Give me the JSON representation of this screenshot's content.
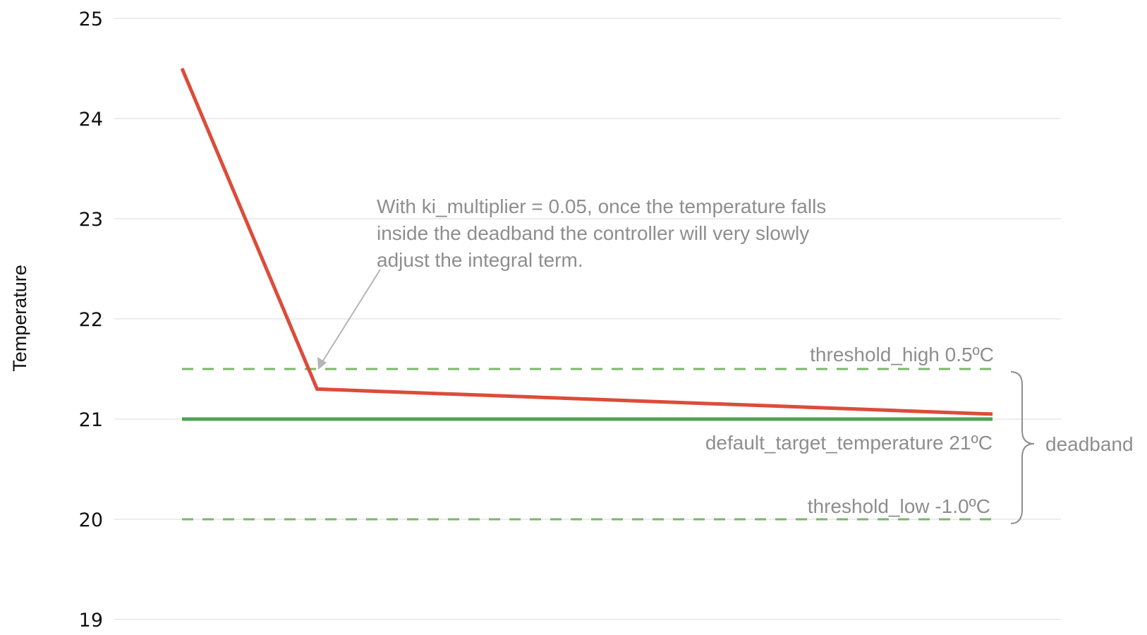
{
  "chart_data": {
    "type": "line",
    "title": "",
    "xlabel": "",
    "ylabel": "Temperature",
    "ylim": [
      19,
      25
    ],
    "xlim": [
      0,
      6
    ],
    "yticks": [
      "19",
      "20",
      "21",
      "22",
      "23",
      "24",
      "25"
    ],
    "grid": true,
    "series": [
      {
        "color": "#dc4c3b",
        "style": "solid",
        "x": [
          0,
          1,
          6
        ],
        "y": [
          24.5,
          21.3,
          21.05
        ]
      },
      {
        "color": "#4ea453",
        "style": "solid",
        "x": [
          0,
          6
        ],
        "y": [
          21,
          21
        ]
      },
      {
        "color": "#7ab86a",
        "style": "dashed",
        "x": [
          0,
          6
        ],
        "y": [
          21.5,
          21.5
        ]
      },
      {
        "color": "#7ab86a",
        "style": "dashed",
        "x": [
          0,
          6
        ],
        "y": [
          20,
          20
        ]
      }
    ],
    "annotations": {
      "note_lines": [
        "With ki_multiplier = 0.05, once the temperature falls",
        "inside the deadband the controller will very slowly",
        "adjust the integral term."
      ],
      "threshold_high": "threshold_high  0.5ºC",
      "default_target": "default_target_temperature  21ºC",
      "threshold_low": "threshold_low  -1.0ºC",
      "deadband": "deadband"
    },
    "colors": {
      "grid": "#ececec",
      "annotation_text": "#8e8e8e",
      "arrow": "#b5b5b5"
    }
  }
}
